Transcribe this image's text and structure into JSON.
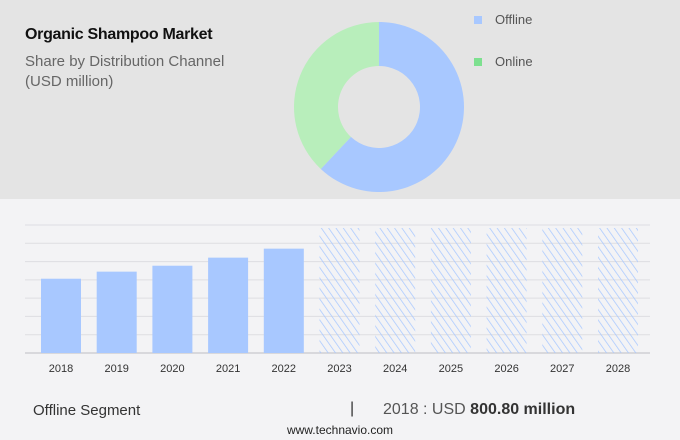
{
  "header": {
    "title": "Organic Shampoo Market",
    "subtitle_line1": "Share by Distribution Channel",
    "subtitle_line2": "(USD million)"
  },
  "chart_data": [
    {
      "type": "pie",
      "subtype": "donut",
      "title": "Share by Distribution Channel",
      "slices": [
        {
          "name": "Offline",
          "share": 62,
          "color": "#a8c8ff"
        },
        {
          "name": "Online",
          "share": 38,
          "color": "#b8eebb"
        }
      ],
      "legend": [
        {
          "label": "Offline",
          "color": "#a8c8ff"
        },
        {
          "label": "Online",
          "color": "#7de08f"
        }
      ],
      "legend_placement": "right"
    },
    {
      "type": "bar",
      "series_name": "Offline Segment",
      "categories": [
        "2018",
        "2019",
        "2020",
        "2021",
        "2022",
        "2023",
        "2024",
        "2025",
        "2026",
        "2027",
        "2028"
      ],
      "values": [
        800.8,
        877,
        941,
        1028,
        1125,
        null,
        null,
        null,
        null,
        null,
        null
      ],
      "forecast_years": [
        "2023",
        "2024",
        "2025",
        "2026",
        "2027",
        "2028"
      ],
      "ylim": [
        0,
        1380
      ],
      "grid": true,
      "bar_color": "#a8c8ff",
      "forecast_style": "hatched"
    }
  ],
  "footer": {
    "segment": "Offline Segment",
    "separator": "|",
    "value_prefix": "2018 : USD",
    "value_bold": "800.80 million",
    "site": "www.technavio.com"
  }
}
